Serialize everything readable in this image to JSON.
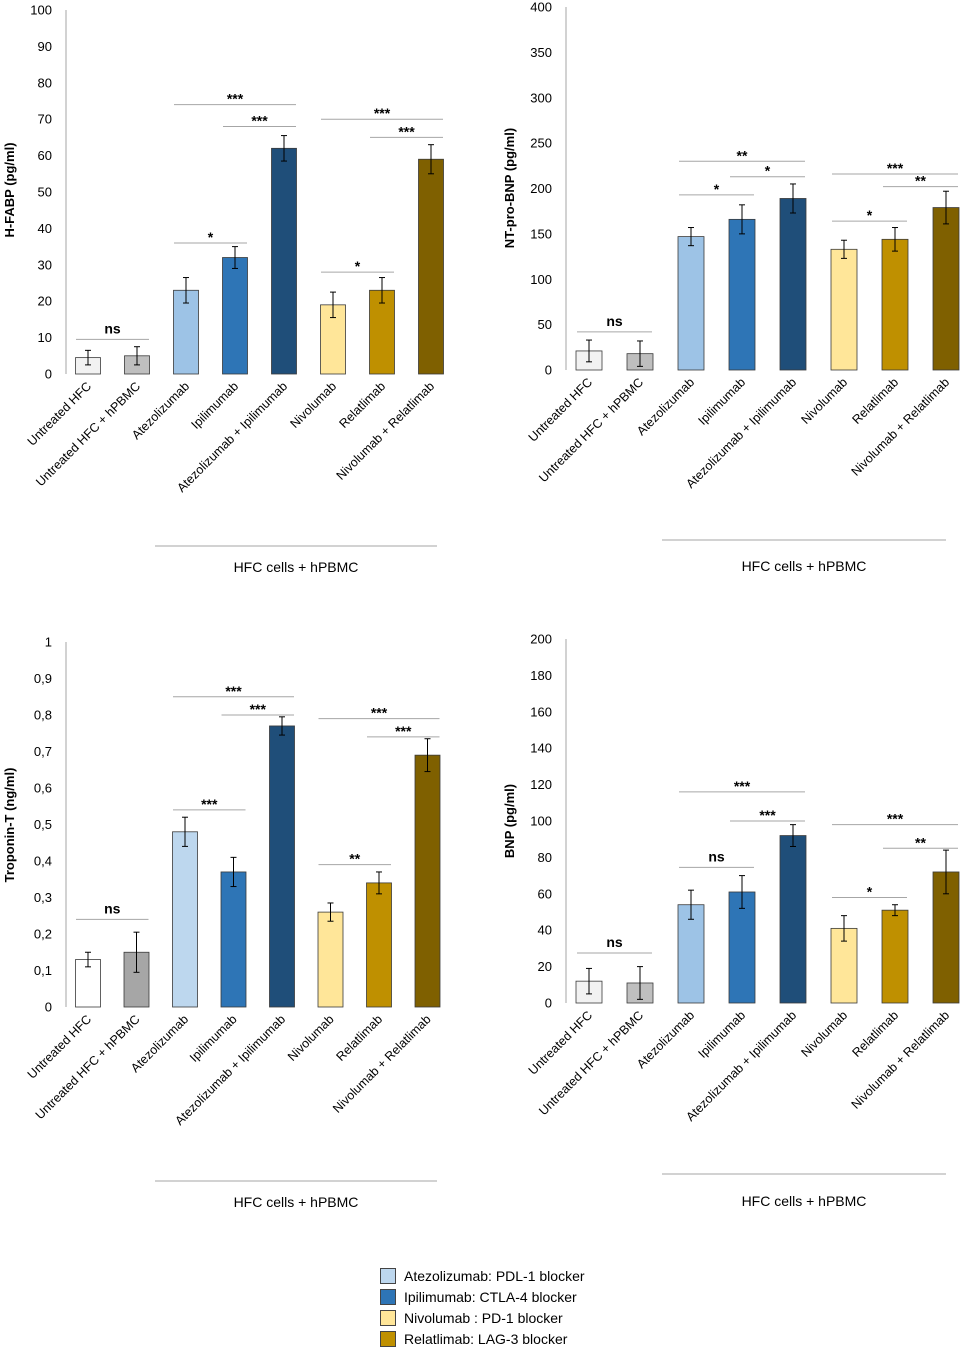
{
  "chart_data": [
    {
      "type": "bar",
      "ylabel": "H-FABP (pg/ml)",
      "ylim": [
        0,
        100
      ],
      "ytick_step": 10,
      "ytick_labels": [
        "0",
        "10",
        "20",
        "30",
        "40",
        "50",
        "60",
        "70",
        "80",
        "90",
        "100"
      ],
      "categories": [
        "Untreated  HFC",
        "Untreated  HFC + hPBMC",
        "Atezolizumab",
        "Ipilimumab",
        "Atezolizumab + Ipilimumab",
        "Nivolumab",
        "Relatlimab",
        "Nivolumab + Relatlimab"
      ],
      "values": [
        4.5,
        5,
        23,
        32,
        62,
        19,
        23,
        59
      ],
      "errors": [
        2,
        2.5,
        3.5,
        3,
        3.5,
        3.5,
        3.5,
        4
      ],
      "colors": [
        "#f2f2f2",
        "#bfbfbf",
        "#9dc3e6",
        "#2e75b6",
        "#1f4e79",
        "#ffe699",
        "#bf9000",
        "#7f6000"
      ],
      "group_label": "HFC cells + hPBMC",
      "annotations": [
        {
          "from": 0,
          "to": 1,
          "label": "ns",
          "y": 9.5
        },
        {
          "from": 2,
          "to": 3,
          "label": "*",
          "y": 36
        },
        {
          "from": 2,
          "to": 4,
          "label": "***",
          "y": 74
        },
        {
          "from": 3,
          "to": 4,
          "label": "***",
          "y": 68
        },
        {
          "from": 5,
          "to": 6,
          "label": "*",
          "y": 28
        },
        {
          "from": 5,
          "to": 7,
          "label": "***",
          "y": 70
        },
        {
          "from": 6,
          "to": 7,
          "label": "***",
          "y": 65
        }
      ]
    },
    {
      "type": "bar",
      "ylabel": "NT-pro-BNP (pg/ml)",
      "ylim": [
        0,
        400
      ],
      "ytick_step": 50,
      "ytick_labels": [
        "0",
        "50",
        "100",
        "150",
        "200",
        "250",
        "300",
        "350",
        "400"
      ],
      "categories": [
        "Untreated  HFC",
        "Untreated  HFC + hPBMC",
        "Atezolizumab",
        "Ipilimumab",
        "Atezolizumab + Ipilimumab",
        "Nivolumab",
        "Relatlimab",
        "Nivolumab + Relatlimab"
      ],
      "values": [
        21,
        18,
        147,
        166,
        189,
        133,
        144,
        179
      ],
      "errors": [
        12,
        14,
        10,
        16,
        16,
        10,
        13,
        18
      ],
      "colors": [
        "#f2f2f2",
        "#bfbfbf",
        "#9dc3e6",
        "#2e75b6",
        "#1f4e79",
        "#ffe699",
        "#bf9000",
        "#7f6000"
      ],
      "group_label": "HFC cells + hPBMC",
      "annotations": [
        {
          "from": 0,
          "to": 1,
          "label": "ns",
          "y": 42
        },
        {
          "from": 2,
          "to": 3,
          "label": "*",
          "y": 193
        },
        {
          "from": 2,
          "to": 4,
          "label": "**",
          "y": 230
        },
        {
          "from": 3,
          "to": 4,
          "label": "*",
          "y": 213
        },
        {
          "from": 5,
          "to": 6,
          "label": "*",
          "y": 164
        },
        {
          "from": 5,
          "to": 7,
          "label": "***",
          "y": 216
        },
        {
          "from": 6,
          "to": 7,
          "label": "**",
          "y": 202
        }
      ]
    },
    {
      "type": "bar",
      "ylabel": "Troponin-T (ng/ml)",
      "ylim": [
        0,
        1
      ],
      "ytick_step": 0.1,
      "ytick_labels": [
        "0",
        "0,1",
        "0,2",
        "0,3",
        "0,4",
        "0,5",
        "0,6",
        "0,7",
        "0,8",
        "0,9",
        "1"
      ],
      "categories": [
        "Untreated  HFC",
        "Untreated  HFC + hPBMC",
        "Atezolizumab",
        "Ipilimumab",
        "Atezolizumab + Ipilimumab",
        "Nivolumab",
        "Relatlimab",
        "Nivolumab + Relatlimab"
      ],
      "values": [
        0.13,
        0.15,
        0.48,
        0.37,
        0.77,
        0.26,
        0.34,
        0.69
      ],
      "errors": [
        0.02,
        0.055,
        0.04,
        0.04,
        0.025,
        0.025,
        0.03,
        0.045
      ],
      "colors": [
        "#ffffff",
        "#a6a6a6",
        "#bdd7ee",
        "#2e75b6",
        "#1f4e79",
        "#ffe699",
        "#bf9000",
        "#7f6000"
      ],
      "group_label": "HFC cells + hPBMC",
      "annotations": [
        {
          "from": 0,
          "to": 1,
          "label": "ns",
          "y": 0.24
        },
        {
          "from": 2,
          "to": 3,
          "label": "***",
          "y": 0.54
        },
        {
          "from": 2,
          "to": 4,
          "label": "***",
          "y": 0.85
        },
        {
          "from": 3,
          "to": 4,
          "label": "***",
          "y": 0.8
        },
        {
          "from": 5,
          "to": 6,
          "label": "**",
          "y": 0.39
        },
        {
          "from": 5,
          "to": 7,
          "label": "***",
          "y": 0.79
        },
        {
          "from": 6,
          "to": 7,
          "label": "***",
          "y": 0.74
        }
      ]
    },
    {
      "type": "bar",
      "ylabel": "BNP (pg/ml)",
      "ylim": [
        0,
        200
      ],
      "ytick_step": 20,
      "ytick_labels": [
        "0",
        "20",
        "40",
        "60",
        "80",
        "100",
        "120",
        "140",
        "160",
        "180",
        "200"
      ],
      "categories": [
        "Untreated  HFC",
        "Untreated  HFC + hPBMC",
        "Atezolizumab",
        "Ipilimumab",
        "Atezolizumab + Ipilimumab",
        "Nivolumab",
        "Relatlimab",
        "Nivolumab + Relatlimab"
      ],
      "values": [
        12,
        11,
        54,
        61,
        92,
        41,
        51,
        72
      ],
      "errors": [
        7,
        9,
        8,
        9,
        6,
        7,
        3,
        12
      ],
      "colors": [
        "#f2f2f2",
        "#bfbfbf",
        "#9dc3e6",
        "#2e75b6",
        "#1f4e79",
        "#ffe699",
        "#bf9000",
        "#7f6000"
      ],
      "group_label": "HFC cells + hPBMC",
      "annotations": [
        {
          "from": 0,
          "to": 1,
          "label": "ns",
          "y": 27.5
        },
        {
          "from": 2,
          "to": 3,
          "label": "ns",
          "y": 74.5
        },
        {
          "from": 2,
          "to": 4,
          "label": "***",
          "y": 116
        },
        {
          "from": 3,
          "to": 4,
          "label": "***",
          "y": 100
        },
        {
          "from": 5,
          "to": 6,
          "label": "*",
          "y": 58
        },
        {
          "from": 5,
          "to": 7,
          "label": "***",
          "y": 98
        },
        {
          "from": 6,
          "to": 7,
          "label": "**",
          "y": 85
        }
      ]
    }
  ],
  "legend": [
    {
      "label": "Atezolizumab:  PDL-1 blocker",
      "color": "#bdd7ee"
    },
    {
      "label": "Ipilimumab: CTLA-4 blocker",
      "color": "#2e75b6"
    },
    {
      "label": "Nivolumab : PD-1 blocker",
      "color": "#ffe699"
    },
    {
      "label": "Relatlimab: LAG-3 blocker",
      "color": "#bf9000"
    }
  ]
}
